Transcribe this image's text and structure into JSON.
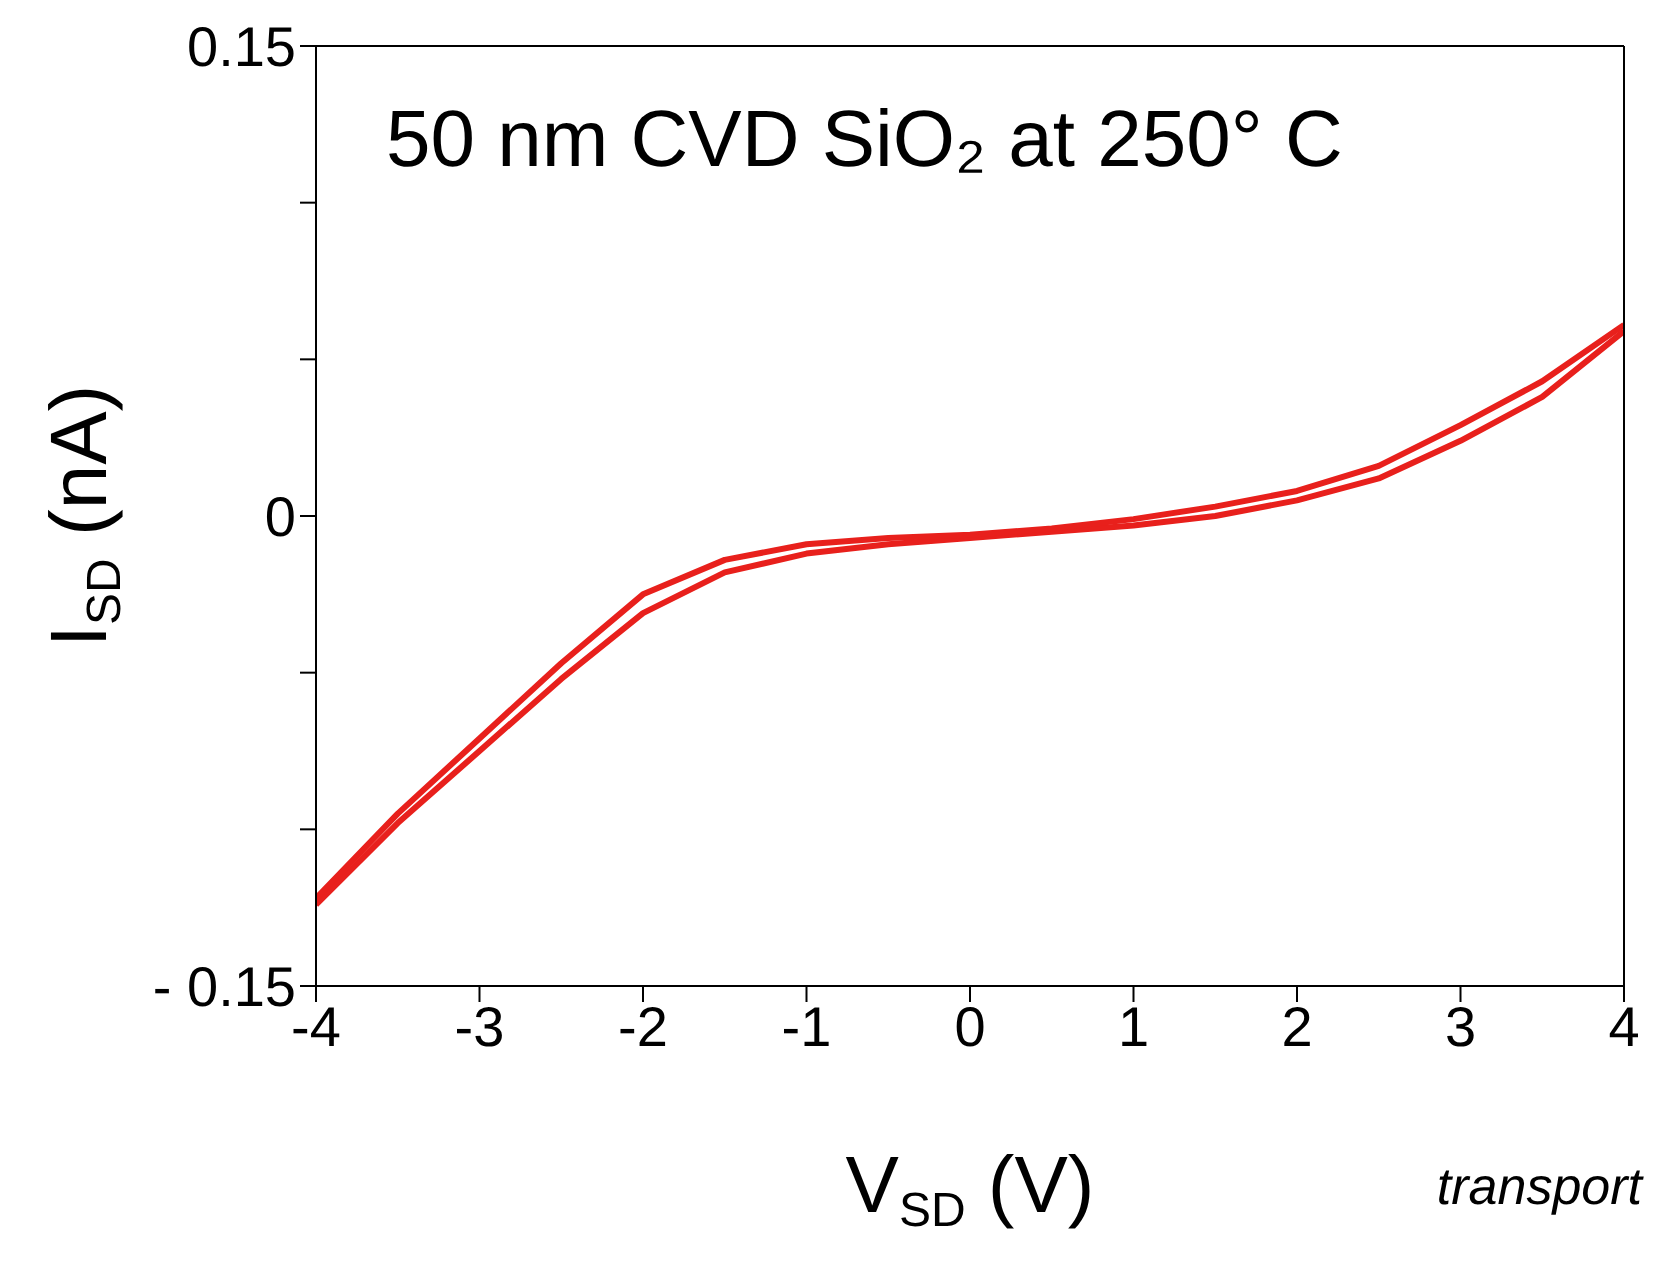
{
  "chart_data": {
    "type": "line",
    "title": "50 nm CVD SiO₂ at 250° C",
    "xlabel": "V$_{SD}$ (V)",
    "ylabel": "I$_{SD}$ (nA)",
    "annotations": [
      "transport"
    ],
    "xlim": [
      -4,
      4
    ],
    "xticks": [
      -4,
      -3,
      -2,
      -1,
      0,
      1,
      2,
      3,
      4
    ],
    "ylim": [
      -0.15,
      0.15
    ],
    "yticks": [
      {
        "value": -0.15,
        "label": "- 0.15"
      },
      {
        "value": -0.1,
        "label": null
      },
      {
        "value": -0.05,
        "label": null
      },
      0,
      {
        "value": 0.05,
        "label": null
      },
      {
        "value": 0.1,
        "label": null
      },
      0.15
    ],
    "grid": false,
    "marker": "none",
    "line_style": "solid",
    "series": [
      {
        "color": "#e8201c",
        "x": [
          -4,
          -3.5,
          -3,
          -2.5,
          -2,
          -1.5,
          -1,
          -0.5,
          0,
          0.5,
          1,
          1.5,
          2,
          2.5,
          3,
          3.5,
          4
        ],
        "values": [
          -0.124,
          -0.098,
          -0.075,
          -0.052,
          -0.031,
          -0.018,
          -0.012,
          -0.009,
          -0.007,
          -0.005,
          -0.003,
          0.0,
          0.005,
          0.012,
          0.024,
          0.038,
          0.059
        ]
      },
      {
        "color": "#e8201c",
        "x": [
          -4,
          -3.5,
          -3,
          -2.5,
          -2,
          -1.5,
          -1,
          -0.5,
          0,
          0.5,
          1,
          1.5,
          2,
          2.5,
          3,
          3.5,
          4
        ],
        "values": [
          -0.122,
          -0.095,
          -0.071,
          -0.047,
          -0.025,
          -0.014,
          -0.009,
          -0.007,
          -0.006,
          -0.004,
          -0.001,
          0.003,
          0.008,
          0.016,
          0.029,
          0.043,
          0.061
        ]
      }
    ]
  }
}
